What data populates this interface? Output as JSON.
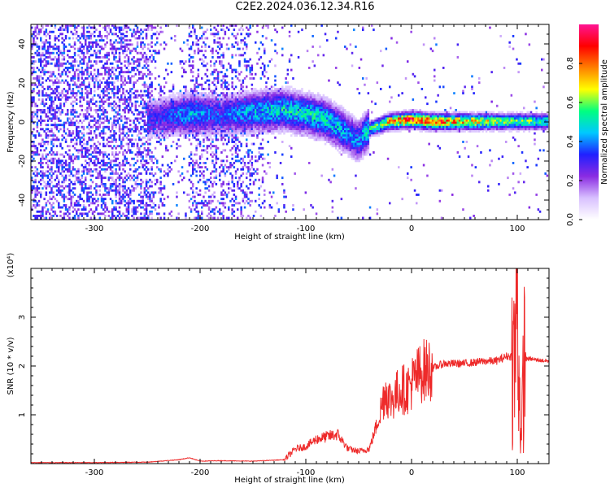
{
  "title": "C2E2.2024.036.12.34.R16",
  "colors": {
    "snr_line": "#ee2a2a",
    "axes": "#000000"
  },
  "chart_data": [
    {
      "type": "heatmap",
      "title": "",
      "xlabel": "Height of straight line (km)",
      "ylabel": "Frequency (Hz)",
      "xlim": [
        -360,
        130
      ],
      "ylim": [
        -50,
        50
      ],
      "x_ticks": [
        "-300",
        "-200",
        "-100",
        "0",
        "100"
      ],
      "y_ticks": [
        "-40",
        "-20",
        "0",
        "20",
        "40"
      ],
      "colorbar": {
        "label": "Normalized spectral amplitude",
        "range": [
          0,
          1
        ],
        "ticks": [
          "0.0",
          "0.2",
          "0.4",
          "0.6",
          "0.8"
        ],
        "colormap": [
          "#ffffff",
          "#d8c0ff",
          "#8a2be2",
          "#2020ff",
          "#00c8ff",
          "#00ff80",
          "#ffff00",
          "#ff8000",
          "#ff0000",
          "#ff1493"
        ]
      },
      "ridge": {
        "x": [
          -240,
          -210,
          -180,
          -150,
          -120,
          -100,
          -80,
          -60,
          -50,
          -40,
          -20,
          0,
          20,
          60,
          100,
          130
        ],
        "center_hz": [
          2,
          4,
          3,
          5,
          6,
          4,
          1,
          -6,
          -10,
          -4,
          0,
          1,
          0,
          0,
          0,
          0
        ],
        "amplitude": [
          0.3,
          0.45,
          0.35,
          0.45,
          0.5,
          0.5,
          0.5,
          0.45,
          0.4,
          0.5,
          0.75,
          0.9,
          0.85,
          0.7,
          0.6,
          0.55
        ]
      }
    },
    {
      "type": "line",
      "title": "",
      "xlabel": "Height of straight line (km)",
      "ylabel": "SNR (10 * v/v)",
      "scale_label": "(x10⁴)",
      "xlim": [
        -360,
        130
      ],
      "ylim": [
        0,
        4
      ],
      "x_ticks": [
        "-300",
        "-200",
        "-100",
        "0",
        "100"
      ],
      "y_ticks": [
        "1",
        "2",
        "3"
      ],
      "series": [
        {
          "x": [
            -360,
            -300,
            -250,
            -220,
            -210,
            -200,
            -180,
            -150,
            -120,
            -110,
            -100,
            -90,
            -80,
            -70,
            -60,
            -50,
            -40,
            -30,
            -25,
            -20,
            -15,
            -10,
            -5,
            0,
            10,
            20,
            30,
            50,
            70,
            80,
            90,
            95,
            98,
            100,
            102,
            104,
            106,
            110,
            120,
            130
          ],
          "values": [
            0.02,
            0.02,
            0.03,
            0.08,
            0.12,
            0.05,
            0.06,
            0.05,
            0.08,
            0.3,
            0.35,
            0.5,
            0.55,
            0.6,
            0.3,
            0.25,
            0.3,
            1.0,
            1.5,
            1.3,
            1.4,
            1.55,
            1.5,
            1.65,
            1.9,
            1.95,
            2.05,
            2.05,
            2.1,
            2.1,
            2.2,
            2.2,
            2.1,
            3.9,
            1.5,
            0.35,
            2.1,
            2.15,
            2.12,
            2.1
          ]
        }
      ]
    }
  ]
}
